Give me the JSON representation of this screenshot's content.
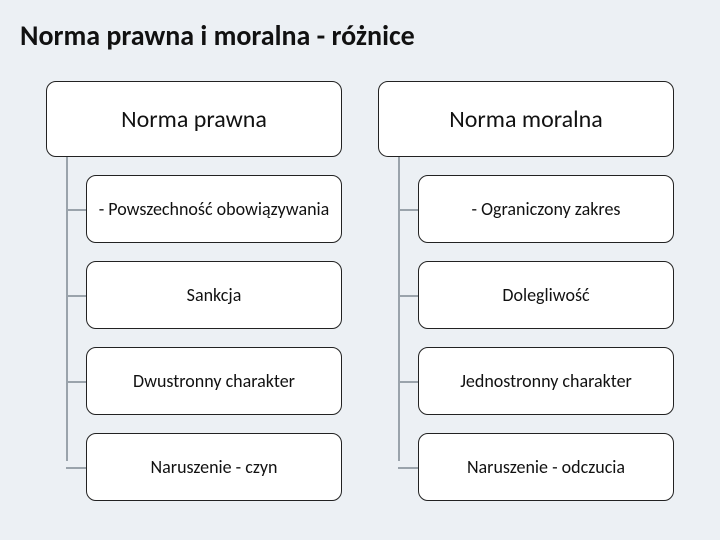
{
  "title": "Norma prawna i moralna - różnice",
  "structure_type": "tree",
  "background_color": "#ecf0f4",
  "box_style": {
    "background_color": "#ffffff",
    "border_color": "#222222",
    "border_radius": 10,
    "connector_color": "#9aa3ab"
  },
  "typography": {
    "title_fontsize": 28,
    "title_weight": 700,
    "header_fontsize": 24,
    "item_fontsize": 18,
    "font_family": "Calibri"
  },
  "columns": [
    {
      "header": "Norma prawna",
      "items": [
        "- Powszechność obowiązywania",
        "Sankcja",
        "Dwustronny charakter",
        "Naruszenie - czyn"
      ]
    },
    {
      "header": "Norma moralna",
      "items": [
        "- Ograniczony zakres",
        "Dolegliwość",
        "Jednostronny charakter",
        "Naruszenie - odczucia"
      ]
    }
  ]
}
